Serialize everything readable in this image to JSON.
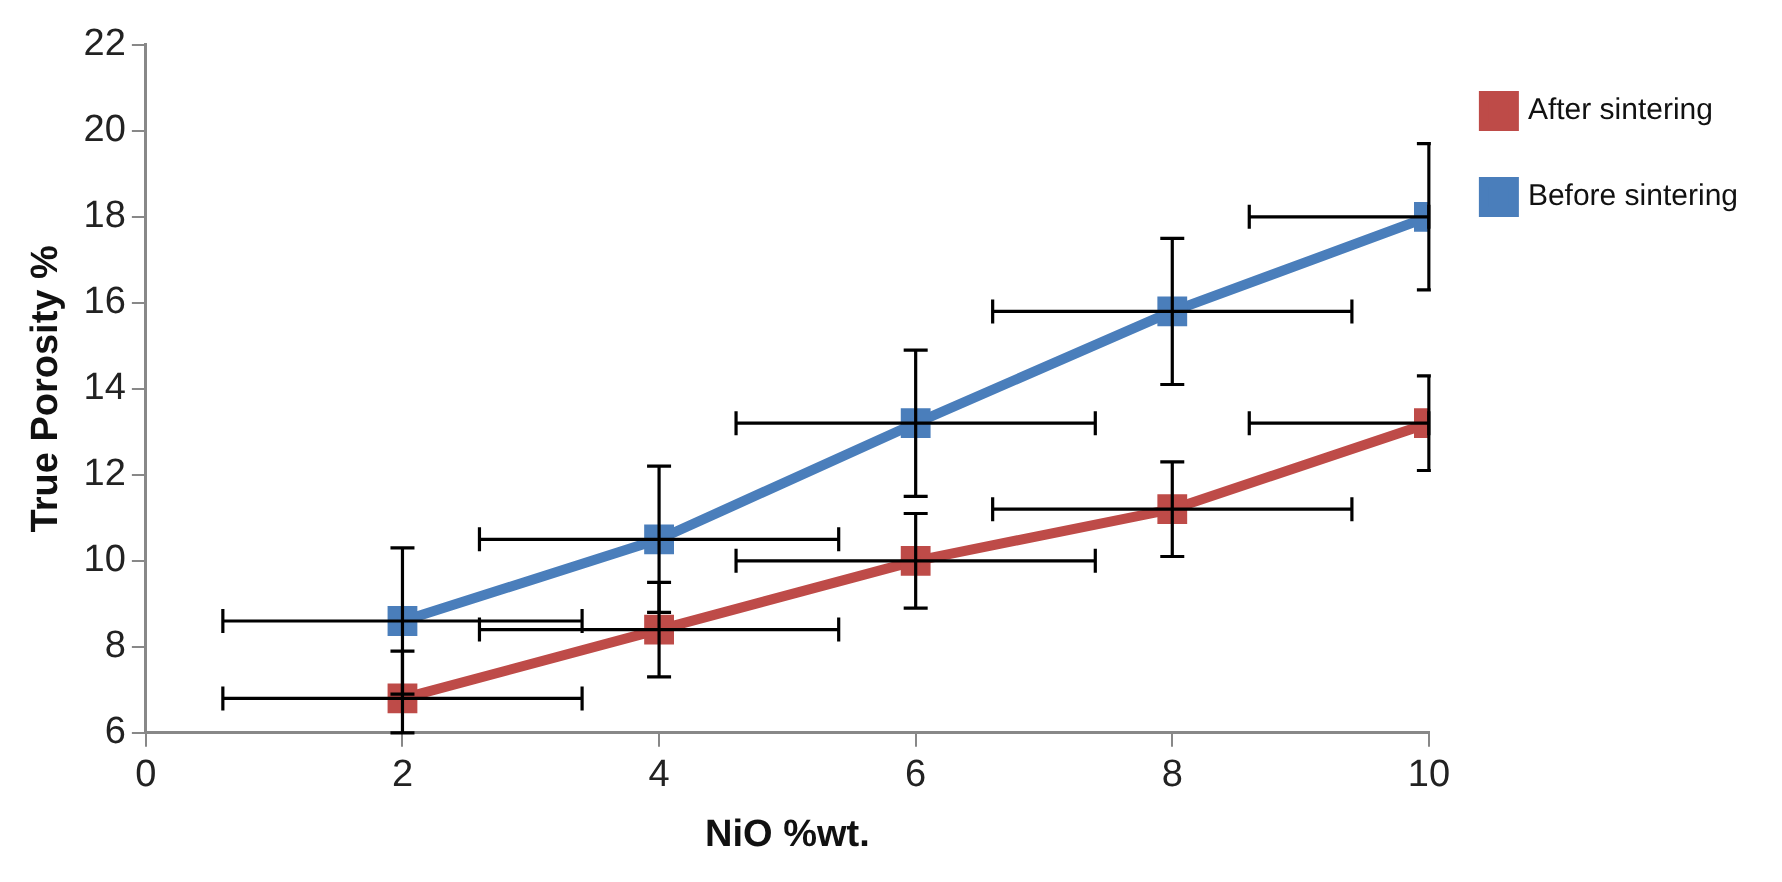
{
  "chart_data": {
    "type": "line",
    "xlabel": "NiO %wt.",
    "ylabel": "True Porosity %",
    "x": [
      2,
      4,
      6,
      8,
      10
    ],
    "xlim": [
      0,
      10
    ],
    "xticks": [
      0,
      2,
      4,
      6,
      8,
      10
    ],
    "ylim": [
      6,
      22
    ],
    "yticks": [
      6,
      8,
      10,
      12,
      14,
      16,
      18,
      20,
      22
    ],
    "grid": false,
    "legend": "right",
    "marker": "square",
    "line_style": "solid",
    "series": [
      {
        "name": "After sintering",
        "color": "#be4b48",
        "values": [
          6.8,
          8.4,
          10,
          11.2,
          13.2
        ],
        "errors": [
          [
            6,
            7.9
          ],
          1.1,
          1.1,
          1.1,
          1.1
        ],
        "xerrors": [
          1.4,
          1.4,
          1.4,
          1.4,
          [
            8.6,
            10
          ]
        ]
      },
      {
        "name": "Before sintering",
        "color": "#4a7ebb",
        "values": [
          8.6,
          10.5,
          13.2,
          15.8,
          18
        ],
        "errors": [
          1.7,
          1.7,
          1.7,
          1.7,
          1.7
        ],
        "xerrors": [
          1.4,
          1.4,
          1.4,
          1.4,
          [
            8.6,
            10
          ]
        ]
      }
    ]
  }
}
